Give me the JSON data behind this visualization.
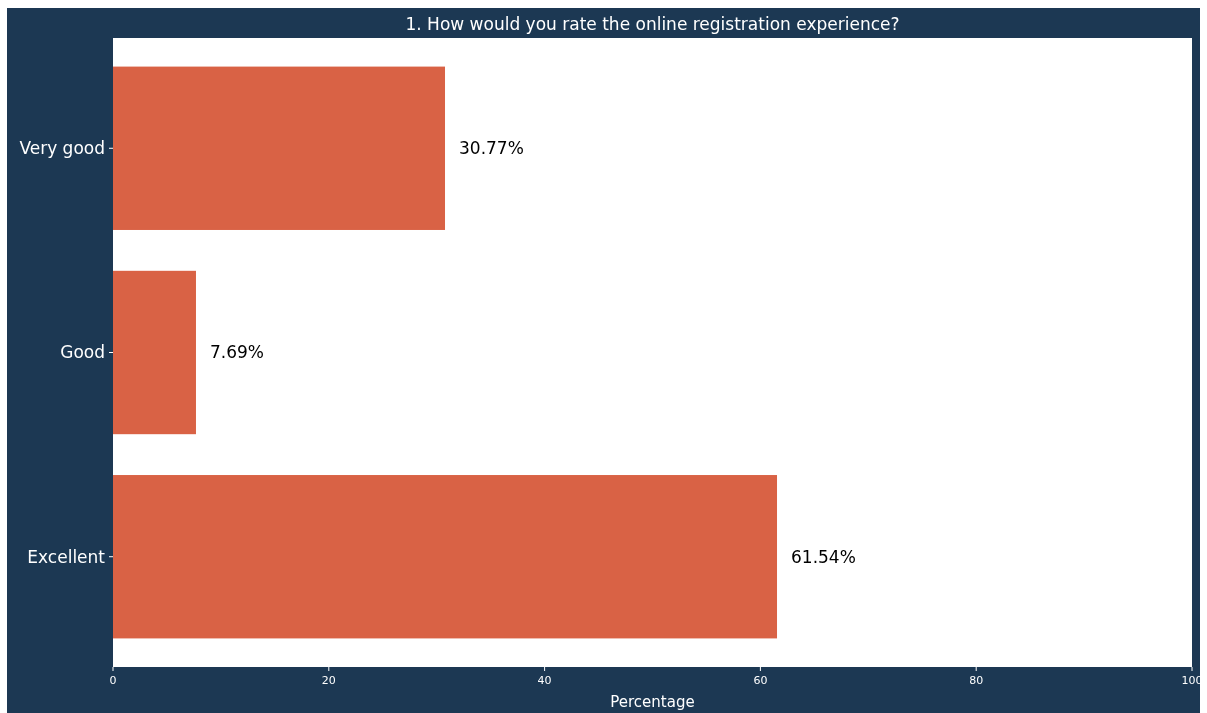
{
  "chart_data": {
    "type": "bar",
    "orientation": "horizontal",
    "title": "1. How would you rate the online registration experience?",
    "xlabel": "Percentage",
    "categories": [
      "Very good",
      "Good",
      "Excellent"
    ],
    "values": [
      30.77,
      7.69,
      61.54
    ],
    "color": "#d96245",
    "value_labels": [
      "30.77%",
      "7.69%",
      "61.54%"
    ],
    "xlim": [
      0,
      100
    ],
    "xticks": [
      0,
      20,
      40,
      60,
      80,
      100
    ],
    "grid": false
  }
}
